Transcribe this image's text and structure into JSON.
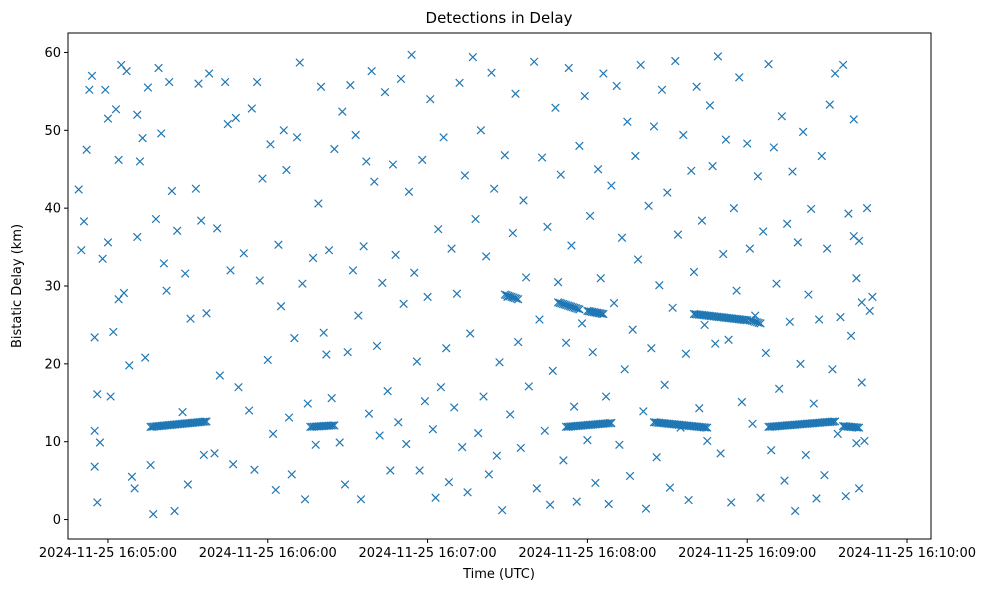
{
  "chart_data": {
    "type": "scatter",
    "title": "Detections in Delay",
    "xlabel": "Time (UTC)",
    "ylabel": "Bistatic Delay (km)",
    "x_ticks": [
      "2024-11-25 16:05:00",
      "2024-11-25 16:06:00",
      "2024-11-25 16:07:00",
      "2024-11-25 16:08:00",
      "2024-11-25 16:09:00",
      "2024-11-25 16:10:00"
    ],
    "y_ticks": [
      0,
      10,
      20,
      30,
      40,
      50,
      60
    ],
    "xlim": [
      "2024-11-25 16:04:45",
      "2024-11-25 16:10:09"
    ],
    "ylim": [
      -2.5,
      62.5
    ],
    "marker": "x",
    "grid": false,
    "color": "#1f77b4",
    "tracks": [
      {
        "x_start": "2024-11-25 16:05:16",
        "x_end": "2024-11-25 16:05:37",
        "y_start": 11.9,
        "y_end": 12.6
      },
      {
        "x_start": "2024-11-25 16:06:16",
        "x_end": "2024-11-25 16:06:25",
        "y_start": 11.9,
        "y_end": 12.1
      },
      {
        "x_start": "2024-11-25 16:07:29",
        "x_end": "2024-11-25 16:07:34",
        "y_start": 28.9,
        "y_end": 28.3
      },
      {
        "x_start": "2024-11-25 16:07:49",
        "x_end": "2024-11-25 16:07:57",
        "y_start": 27.9,
        "y_end": 27.0
      },
      {
        "x_start": "2024-11-25 16:07:52",
        "x_end": "2024-11-25 16:08:09",
        "y_start": 11.9,
        "y_end": 12.4
      },
      {
        "x_start": "2024-11-25 16:08:00",
        "x_end": "2024-11-25 16:08:06",
        "y_start": 26.8,
        "y_end": 26.4
      },
      {
        "x_start": "2024-11-25 16:08:25",
        "x_end": "2024-11-25 16:08:45",
        "y_start": 12.5,
        "y_end": 11.8
      },
      {
        "x_start": "2024-11-25 16:08:40",
        "x_end": "2024-11-25 16:09:00",
        "y_start": 26.4,
        "y_end": 25.6
      },
      {
        "x_start": "2024-11-25 16:09:01",
        "x_end": "2024-11-25 16:09:05",
        "y_start": 25.6,
        "y_end": 25.2
      },
      {
        "x_start": "2024-11-25 16:09:08",
        "x_end": "2024-11-25 16:09:33",
        "y_start": 11.9,
        "y_end": 12.6
      },
      {
        "x_start": "2024-11-25 16:09:36",
        "x_end": "2024-11-25 16:09:42",
        "y_start": 12.0,
        "y_end": 11.8
      }
    ],
    "scatter_points": [
      [
        "16:04:49",
        42.4
      ],
      [
        "16:04:50",
        34.6
      ],
      [
        "16:04:51",
        38.3
      ],
      [
        "16:04:52",
        47.5
      ],
      [
        "16:04:53",
        55.2
      ],
      [
        "16:04:54",
        57.0
      ],
      [
        "16:04:55",
        23.4
      ],
      [
        "16:04:55",
        11.4
      ],
      [
        "16:04:55",
        6.8
      ],
      [
        "16:04:56",
        2.2
      ],
      [
        "16:04:56",
        16.1
      ],
      [
        "16:04:57",
        9.9
      ],
      [
        "16:04:58",
        33.5
      ],
      [
        "16:04:59",
        55.2
      ],
      [
        "16:05:00",
        51.5
      ],
      [
        "16:05:00",
        35.6
      ],
      [
        "16:05:01",
        15.8
      ],
      [
        "16:05:02",
        24.1
      ],
      [
        "16:05:03",
        52.7
      ],
      [
        "16:05:04",
        28.3
      ],
      [
        "16:05:04",
        46.2
      ],
      [
        "16:05:05",
        58.4
      ],
      [
        "16:05:06",
        29.1
      ],
      [
        "16:05:07",
        57.6
      ],
      [
        "16:05:08",
        19.8
      ],
      [
        "16:05:09",
        5.5
      ],
      [
        "16:05:10",
        4.0
      ],
      [
        "16:05:11",
        52.0
      ],
      [
        "16:05:11",
        36.3
      ],
      [
        "16:05:12",
        46.0
      ],
      [
        "16:05:13",
        49.0
      ],
      [
        "16:05:14",
        20.8
      ],
      [
        "16:05:15",
        55.5
      ],
      [
        "16:05:16",
        7.0
      ],
      [
        "16:05:17",
        0.7
      ],
      [
        "16:05:18",
        38.6
      ],
      [
        "16:05:19",
        58.0
      ],
      [
        "16:05:20",
        49.6
      ],
      [
        "16:05:21",
        32.9
      ],
      [
        "16:05:22",
        29.4
      ],
      [
        "16:05:23",
        56.2
      ],
      [
        "16:05:24",
        42.2
      ],
      [
        "16:05:25",
        1.1
      ],
      [
        "16:05:26",
        37.1
      ],
      [
        "16:05:28",
        13.8
      ],
      [
        "16:05:29",
        31.6
      ],
      [
        "16:05:30",
        4.5
      ],
      [
        "16:05:31",
        25.8
      ],
      [
        "16:05:33",
        42.5
      ],
      [
        "16:05:34",
        56.0
      ],
      [
        "16:05:35",
        38.4
      ],
      [
        "16:05:36",
        8.3
      ],
      [
        "16:05:37",
        26.5
      ],
      [
        "16:05:38",
        57.3
      ],
      [
        "16:05:40",
        8.5
      ],
      [
        "16:05:41",
        37.4
      ],
      [
        "16:05:42",
        18.5
      ],
      [
        "16:05:44",
        56.2
      ],
      [
        "16:05:45",
        50.8
      ],
      [
        "16:05:46",
        32.0
      ],
      [
        "16:05:47",
        7.1
      ],
      [
        "16:05:48",
        51.6
      ],
      [
        "16:05:49",
        17.0
      ],
      [
        "16:05:51",
        34.2
      ],
      [
        "16:05:53",
        14.0
      ],
      [
        "16:05:54",
        52.8
      ],
      [
        "16:05:55",
        6.4
      ],
      [
        "16:05:56",
        56.2
      ],
      [
        "16:05:57",
        30.7
      ],
      [
        "16:05:58",
        43.8
      ],
      [
        "16:06:00",
        20.5
      ],
      [
        "16:06:01",
        48.2
      ],
      [
        "16:06:02",
        11.0
      ],
      [
        "16:06:03",
        3.8
      ],
      [
        "16:06:04",
        35.3
      ],
      [
        "16:06:05",
        27.4
      ],
      [
        "16:06:06",
        50.0
      ],
      [
        "16:06:07",
        44.9
      ],
      [
        "16:06:08",
        13.1
      ],
      [
        "16:06:09",
        5.8
      ],
      [
        "16:06:10",
        23.3
      ],
      [
        "16:06:11",
        49.1
      ],
      [
        "16:06:12",
        58.7
      ],
      [
        "16:06:13",
        30.3
      ],
      [
        "16:06:14",
        2.6
      ],
      [
        "16:06:15",
        14.9
      ],
      [
        "16:06:17",
        33.6
      ],
      [
        "16:06:18",
        9.6
      ],
      [
        "16:06:19",
        40.6
      ],
      [
        "16:06:20",
        55.6
      ],
      [
        "16:06:21",
        24.0
      ],
      [
        "16:06:22",
        21.2
      ],
      [
        "16:06:23",
        34.6
      ],
      [
        "16:06:24",
        15.6
      ],
      [
        "16:06:25",
        47.6
      ],
      [
        "16:06:27",
        9.9
      ],
      [
        "16:06:28",
        52.4
      ],
      [
        "16:06:29",
        4.5
      ],
      [
        "16:06:30",
        21.5
      ],
      [
        "16:06:31",
        55.8
      ],
      [
        "16:06:32",
        32.0
      ],
      [
        "16:06:33",
        49.4
      ],
      [
        "16:06:34",
        26.2
      ],
      [
        "16:06:35",
        2.6
      ],
      [
        "16:06:36",
        35.1
      ],
      [
        "16:06:37",
        46.0
      ],
      [
        "16:06:38",
        13.6
      ],
      [
        "16:06:39",
        57.6
      ],
      [
        "16:06:40",
        43.4
      ],
      [
        "16:06:41",
        22.3
      ],
      [
        "16:06:42",
        10.8
      ],
      [
        "16:06:43",
        30.4
      ],
      [
        "16:06:44",
        54.9
      ],
      [
        "16:06:45",
        16.5
      ],
      [
        "16:06:46",
        6.3
      ],
      [
        "16:06:47",
        45.6
      ],
      [
        "16:06:48",
        34.0
      ],
      [
        "16:06:49",
        12.5
      ],
      [
        "16:06:50",
        56.6
      ],
      [
        "16:06:51",
        27.7
      ],
      [
        "16:06:52",
        9.7
      ],
      [
        "16:06:53",
        42.1
      ],
      [
        "16:06:54",
        59.7
      ],
      [
        "16:06:55",
        31.7
      ],
      [
        "16:06:56",
        20.3
      ],
      [
        "16:06:57",
        6.3
      ],
      [
        "16:06:58",
        46.2
      ],
      [
        "16:06:59",
        15.2
      ],
      [
        "16:07:00",
        28.6
      ],
      [
        "16:07:01",
        54.0
      ],
      [
        "16:07:02",
        11.6
      ],
      [
        "16:07:03",
        2.8
      ],
      [
        "16:07:04",
        37.3
      ],
      [
        "16:07:05",
        17.0
      ],
      [
        "16:07:06",
        49.1
      ],
      [
        "16:07:07",
        22.0
      ],
      [
        "16:07:08",
        4.8
      ],
      [
        "16:07:09",
        34.8
      ],
      [
        "16:07:10",
        14.4
      ],
      [
        "16:07:11",
        29.0
      ],
      [
        "16:07:12",
        56.1
      ],
      [
        "16:07:13",
        9.3
      ],
      [
        "16:07:14",
        44.2
      ],
      [
        "16:07:15",
        3.5
      ],
      [
        "16:07:16",
        23.9
      ],
      [
        "16:07:17",
        59.4
      ],
      [
        "16:07:18",
        38.6
      ],
      [
        "16:07:19",
        11.1
      ],
      [
        "16:07:20",
        50.0
      ],
      [
        "16:07:21",
        15.8
      ],
      [
        "16:07:22",
        33.8
      ],
      [
        "16:07:23",
        5.8
      ],
      [
        "16:07:24",
        57.4
      ],
      [
        "16:07:25",
        42.5
      ],
      [
        "16:07:26",
        8.2
      ],
      [
        "16:07:27",
        20.2
      ],
      [
        "16:07:28",
        1.2
      ],
      [
        "16:07:29",
        46.8
      ],
      [
        "16:07:30",
        28.6
      ],
      [
        "16:07:31",
        13.5
      ],
      [
        "16:07:32",
        36.8
      ],
      [
        "16:07:33",
        54.7
      ],
      [
        "16:07:34",
        22.8
      ],
      [
        "16:07:35",
        9.2
      ],
      [
        "16:07:36",
        41.0
      ],
      [
        "16:07:37",
        31.1
      ],
      [
        "16:07:38",
        17.1
      ],
      [
        "16:07:40",
        58.8
      ],
      [
        "16:07:41",
        4.0
      ],
      [
        "16:07:42",
        25.7
      ],
      [
        "16:07:43",
        46.5
      ],
      [
        "16:07:44",
        11.4
      ],
      [
        "16:07:45",
        37.6
      ],
      [
        "16:07:46",
        1.9
      ],
      [
        "16:07:47",
        19.1
      ],
      [
        "16:07:48",
        52.9
      ],
      [
        "16:07:49",
        30.5
      ],
      [
        "16:07:50",
        44.3
      ],
      [
        "16:07:51",
        7.6
      ],
      [
        "16:07:52",
        22.7
      ],
      [
        "16:07:53",
        58.0
      ],
      [
        "16:07:54",
        35.2
      ],
      [
        "16:07:55",
        14.5
      ],
      [
        "16:07:56",
        2.3
      ],
      [
        "16:07:57",
        48.0
      ],
      [
        "16:07:58",
        25.2
      ],
      [
        "16:07:59",
        54.4
      ],
      [
        "16:08:00",
        10.2
      ],
      [
        "16:08:01",
        39.0
      ],
      [
        "16:08:02",
        21.5
      ],
      [
        "16:08:03",
        4.7
      ],
      [
        "16:08:04",
        45.0
      ],
      [
        "16:08:05",
        31.0
      ],
      [
        "16:08:06",
        57.3
      ],
      [
        "16:08:07",
        15.8
      ],
      [
        "16:08:08",
        2.0
      ],
      [
        "16:08:09",
        42.9
      ],
      [
        "16:08:10",
        27.8
      ],
      [
        "16:08:11",
        55.7
      ],
      [
        "16:08:12",
        9.6
      ],
      [
        "16:08:13",
        36.2
      ],
      [
        "16:08:14",
        19.3
      ],
      [
        "16:08:15",
        51.1
      ],
      [
        "16:08:16",
        5.6
      ],
      [
        "16:08:17",
        24.4
      ],
      [
        "16:08:18",
        46.7
      ],
      [
        "16:08:19",
        33.4
      ],
      [
        "16:08:20",
        58.4
      ],
      [
        "16:08:21",
        13.9
      ],
      [
        "16:08:22",
        1.4
      ],
      [
        "16:08:23",
        40.3
      ],
      [
        "16:08:24",
        22.0
      ],
      [
        "16:08:25",
        50.5
      ],
      [
        "16:08:26",
        8.0
      ],
      [
        "16:08:27",
        30.1
      ],
      [
        "16:08:28",
        55.2
      ],
      [
        "16:08:29",
        17.3
      ],
      [
        "16:08:30",
        42.0
      ],
      [
        "16:08:31",
        4.1
      ],
      [
        "16:08:32",
        27.2
      ],
      [
        "16:08:33",
        58.9
      ],
      [
        "16:08:34",
        36.6
      ],
      [
        "16:08:35",
        11.8
      ],
      [
        "16:08:36",
        49.4
      ],
      [
        "16:08:37",
        21.3
      ],
      [
        "16:08:38",
        2.5
      ],
      [
        "16:08:39",
        44.8
      ],
      [
        "16:08:40",
        31.8
      ],
      [
        "16:08:41",
        55.6
      ],
      [
        "16:08:42",
        14.3
      ],
      [
        "16:08:43",
        38.4
      ],
      [
        "16:08:44",
        25.0
      ],
      [
        "16:08:45",
        10.1
      ],
      [
        "16:08:46",
        53.2
      ],
      [
        "16:08:47",
        45.4
      ],
      [
        "16:08:48",
        22.6
      ],
      [
        "16:08:49",
        59.5
      ],
      [
        "16:08:50",
        8.5
      ],
      [
        "16:08:51",
        34.1
      ],
      [
        "16:08:52",
        48.8
      ],
      [
        "16:08:53",
        23.1
      ],
      [
        "16:08:54",
        2.2
      ],
      [
        "16:08:55",
        40.0
      ],
      [
        "16:08:56",
        29.4
      ],
      [
        "16:08:57",
        56.8
      ],
      [
        "16:08:58",
        15.1
      ],
      [
        "16:09:00",
        48.3
      ],
      [
        "16:09:01",
        34.8
      ],
      [
        "16:09:02",
        12.3
      ],
      [
        "16:09:03",
        26.2
      ],
      [
        "16:09:04",
        44.1
      ],
      [
        "16:09:05",
        2.8
      ],
      [
        "16:09:06",
        37.0
      ],
      [
        "16:09:07",
        21.4
      ],
      [
        "16:09:08",
        58.5
      ],
      [
        "16:09:09",
        8.9
      ],
      [
        "16:09:10",
        47.8
      ],
      [
        "16:09:11",
        30.3
      ],
      [
        "16:09:12",
        16.8
      ],
      [
        "16:09:13",
        51.8
      ],
      [
        "16:09:14",
        5.0
      ],
      [
        "16:09:15",
        38.0
      ],
      [
        "16:09:16",
        25.4
      ],
      [
        "16:09:17",
        44.7
      ],
      [
        "16:09:18",
        1.1
      ],
      [
        "16:09:19",
        35.6
      ],
      [
        "16:09:20",
        20.0
      ],
      [
        "16:09:21",
        49.8
      ],
      [
        "16:09:22",
        8.3
      ],
      [
        "16:09:23",
        28.9
      ],
      [
        "16:09:24",
        39.9
      ],
      [
        "16:09:25",
        14.9
      ],
      [
        "16:09:26",
        2.7
      ],
      [
        "16:09:27",
        25.7
      ],
      [
        "16:09:28",
        46.7
      ],
      [
        "16:09:29",
        5.7
      ],
      [
        "16:09:30",
        34.8
      ],
      [
        "16:09:31",
        53.3
      ],
      [
        "16:09:32",
        19.3
      ],
      [
        "16:09:33",
        57.3
      ],
      [
        "16:09:34",
        11.0
      ],
      [
        "16:09:35",
        26.0
      ],
      [
        "16:09:36",
        58.4
      ],
      [
        "16:09:37",
        3.0
      ],
      [
        "16:09:38",
        39.3
      ],
      [
        "16:09:39",
        23.6
      ],
      [
        "16:09:40",
        51.4
      ],
      [
        "16:09:41",
        9.8
      ],
      [
        "16:09:42",
        35.8
      ],
      [
        "16:09:43",
        17.6
      ],
      [
        "16:09:43",
        27.9
      ],
      [
        "16:09:44",
        10.1
      ],
      [
        "16:09:45",
        40.0
      ],
      [
        "16:09:46",
        26.8
      ],
      [
        "16:09:47",
        28.6
      ],
      [
        "16:09:42",
        4.0
      ],
      [
        "16:09:41",
        31.0
      ],
      [
        "16:09:40",
        36.4
      ]
    ]
  }
}
